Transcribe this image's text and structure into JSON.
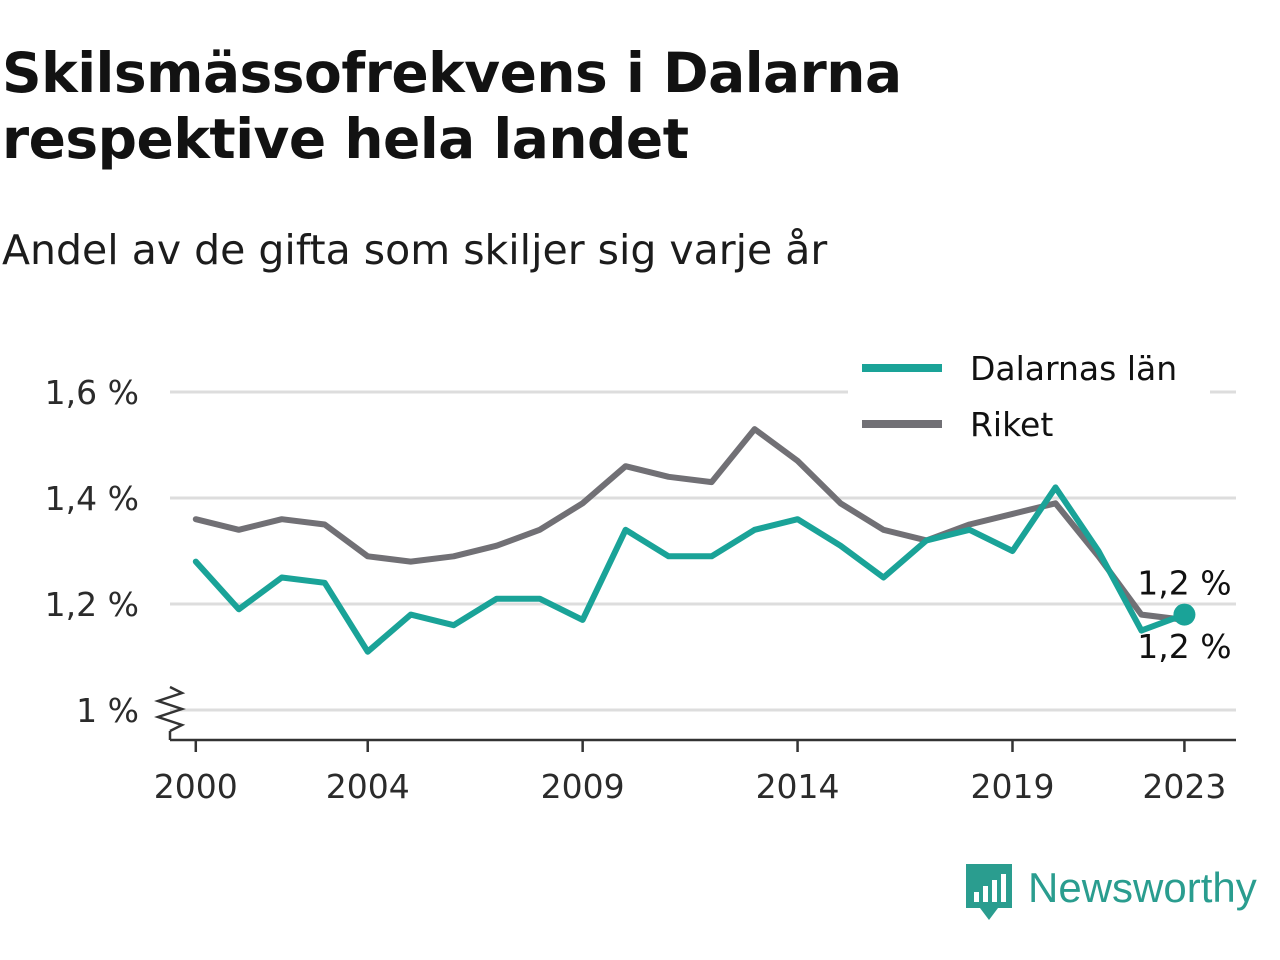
{
  "title_line1": "Skilsmässofrekvens i Dalarna",
  "title_line2": "respektive hela landet",
  "subtitle": "Andel av de gifta som skiljer sig varje år",
  "brand": "Newsworthy",
  "colors": {
    "dalarna": "#1aa398",
    "riket": "#717075",
    "grid": "#dddddd",
    "axis": "#333333"
  },
  "chart_data": {
    "type": "line",
    "x": [
      2000,
      2001,
      2002,
      2003,
      2004,
      2005,
      2006,
      2007,
      2008,
      2009,
      2010,
      2011,
      2012,
      2013,
      2014,
      2015,
      2016,
      2017,
      2018,
      2019,
      2020,
      2021,
      2022,
      2023
    ],
    "series": [
      {
        "name": "Dalarnas län",
        "color": "#1aa398",
        "values": [
          1.28,
          1.19,
          1.25,
          1.24,
          1.11,
          1.18,
          1.16,
          1.21,
          1.21,
          1.17,
          1.34,
          1.29,
          1.29,
          1.34,
          1.36,
          1.31,
          1.25,
          1.32,
          1.34,
          1.3,
          1.42,
          1.3,
          1.15,
          1.18
        ]
      },
      {
        "name": "Riket",
        "color": "#717075",
        "values": [
          1.36,
          1.34,
          1.36,
          1.35,
          1.29,
          1.28,
          1.29,
          1.31,
          1.34,
          1.39,
          1.46,
          1.44,
          1.43,
          1.53,
          1.47,
          1.39,
          1.34,
          1.32,
          1.35,
          1.37,
          1.39,
          1.29,
          1.18,
          1.17
        ]
      }
    ],
    "x_ticks": [
      2000,
      2004,
      2009,
      2014,
      2019,
      2023
    ],
    "y_ticks": [
      {
        "value": 1.0,
        "label": "1 %"
      },
      {
        "value": 1.2,
        "label": "1,2 %"
      },
      {
        "value": 1.4,
        "label": "1,4 %"
      },
      {
        "value": 1.6,
        "label": "1,6 %"
      }
    ],
    "ylim": [
      1.0,
      1.6
    ],
    "xlim": [
      1999.4,
      2024.2
    ],
    "end_labels": [
      {
        "series": "Dalarnas län",
        "text": "1,2 %"
      },
      {
        "series": "Riket",
        "text": "1,2 %"
      }
    ],
    "grid": true,
    "legend": "top-right",
    "y_axis_break": true
  }
}
